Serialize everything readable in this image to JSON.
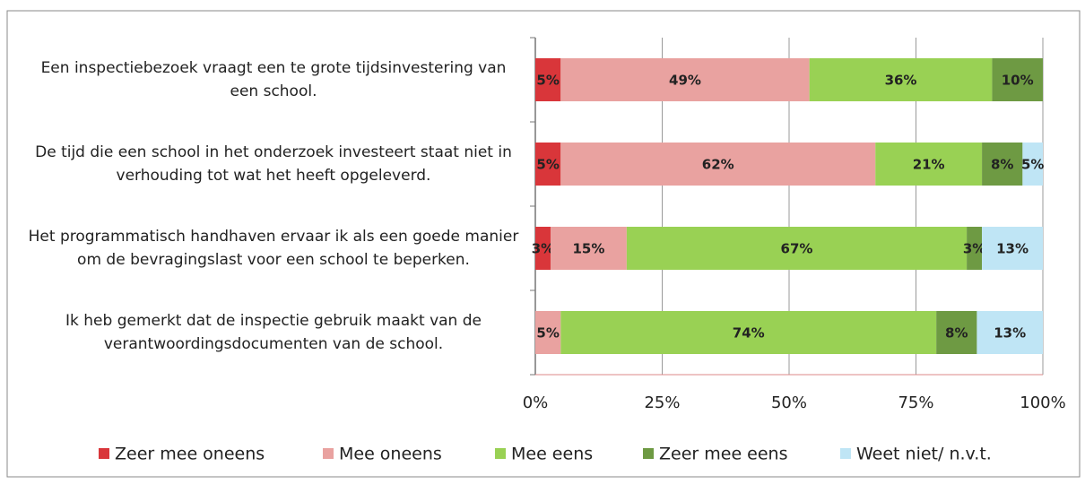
{
  "chart_data": {
    "type": "stacked-bar-horizontal",
    "categories": [
      "Een inspectiebezoek vraagt een te grote tijdsinvestering van een school.",
      "De tijd die een school in het onderzoek investeert staat niet in verhouding tot wat het heeft opgeleverd.",
      "Het programmatisch handhaven ervaar ik als een goede manier om de bevragingslast voor een school te beperken.",
      "Ik heb gemerkt dat de inspectie gebruik maakt van de verantwoordingsdocumenten van de school."
    ],
    "series": [
      {
        "name": "Zeer mee oneens",
        "color": "#d9363a",
        "values": [
          5,
          5,
          3,
          null
        ],
        "value_labels": [
          "5%",
          "5%",
          "3%",
          null
        ]
      },
      {
        "name": "Mee oneens",
        "color": "#e9a2a0",
        "values": [
          49,
          62,
          15,
          5
        ],
        "value_labels": [
          "49%",
          "62%",
          "15%",
          "5%"
        ]
      },
      {
        "name": "Mee eens",
        "color": "#99d154",
        "values": [
          36,
          21,
          67,
          74
        ],
        "value_labels": [
          "36%",
          "21%",
          "67%",
          "74%"
        ]
      },
      {
        "name": "Zeer mee eens",
        "color": "#6e9a43",
        "values": [
          10,
          8,
          3,
          8
        ],
        "value_labels": [
          "10%",
          "8%",
          "3%",
          "8%"
        ]
      },
      {
        "name": "Weet niet/ n.v.t.",
        "color": "#bfe5f5",
        "values": [
          null,
          5,
          13,
          13
        ],
        "value_labels": [
          null,
          "5%",
          "13%",
          "13%"
        ]
      }
    ],
    "xlim": [
      0,
      100
    ],
    "xticks": [
      {
        "value": 0,
        "label": "0%"
      },
      {
        "value": 25,
        "label": "25%"
      },
      {
        "value": 50,
        "label": "50%"
      },
      {
        "value": 75,
        "label": "75%"
      },
      {
        "value": 100,
        "label": "100%"
      }
    ],
    "grid": true,
    "legend": "bottom"
  }
}
